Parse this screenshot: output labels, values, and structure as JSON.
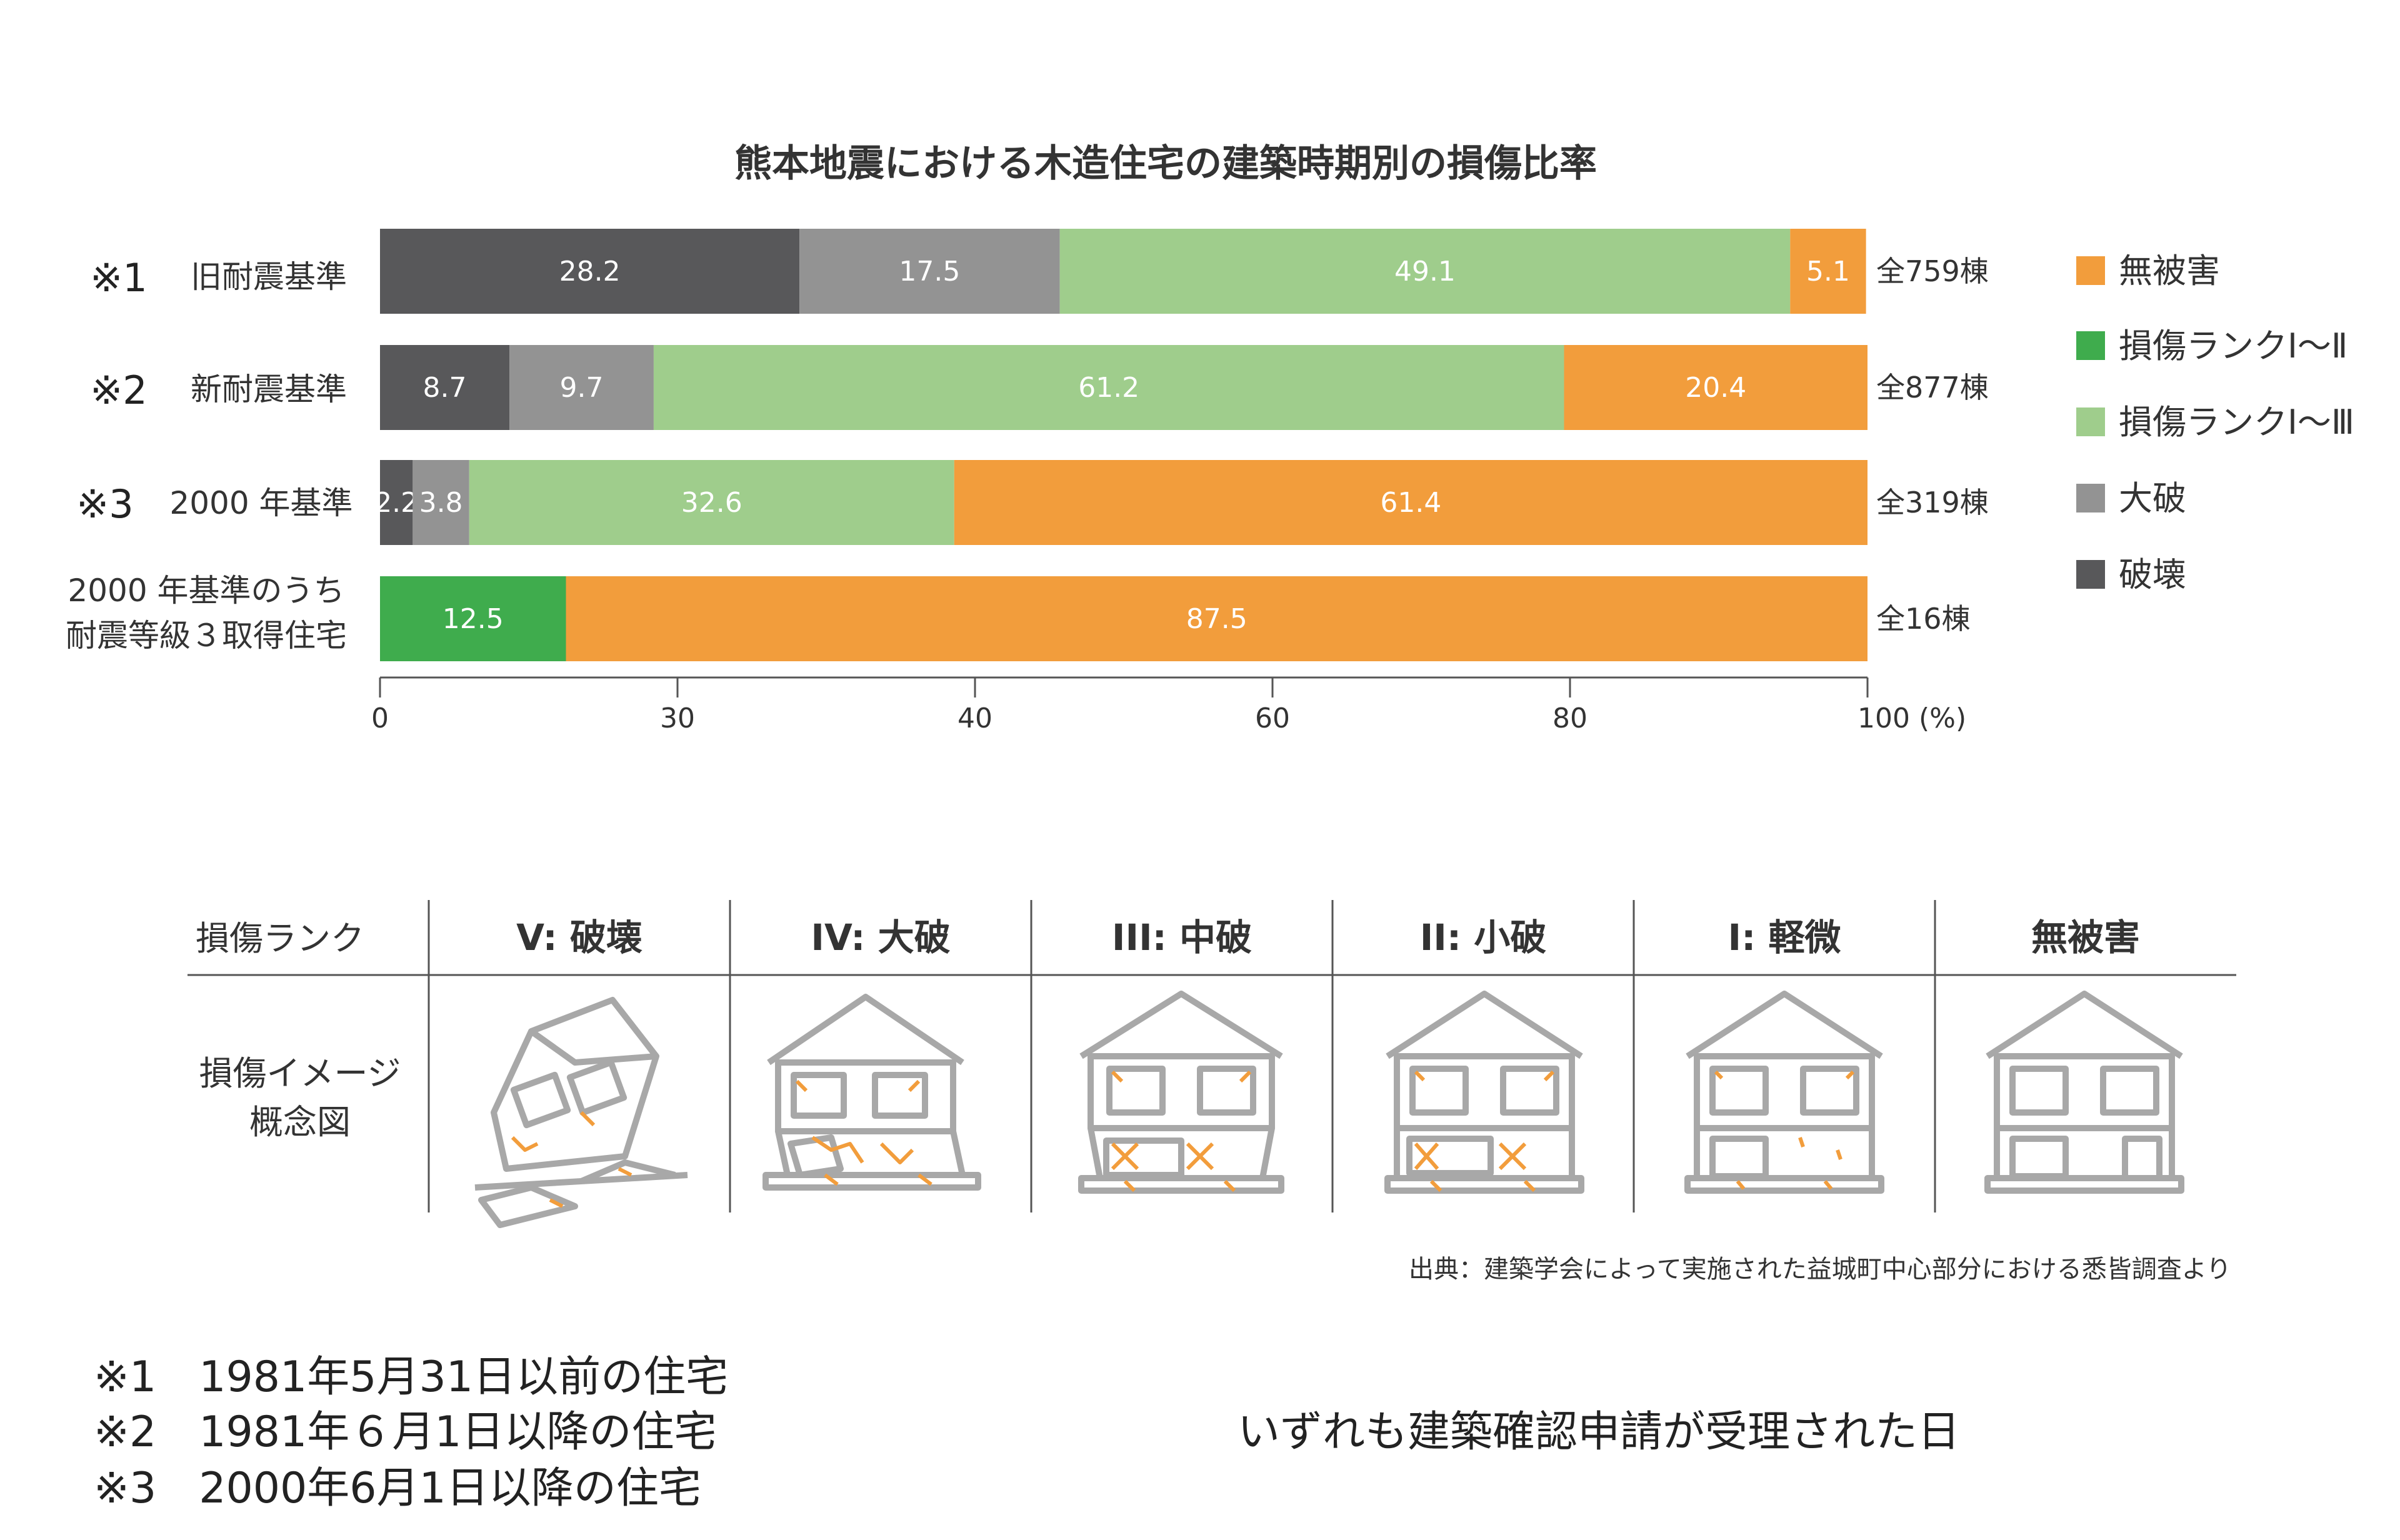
{
  "chart_data": {
    "type": "bar",
    "stacked": true,
    "orientation": "horizontal",
    "title": "熊本地震における木造住宅の建築時期別の損傷比率",
    "categories": [
      {
        "note": "※1",
        "label": "旧耐震基準"
      },
      {
        "note": "※2",
        "label": "新耐震基準"
      },
      {
        "note": "※3",
        "label": "2000 年基準"
      },
      {
        "note": "",
        "label": "2000 年基準のうち\n耐震等級３取得住宅"
      }
    ],
    "series": [
      {
        "name": "破壊",
        "color": "#58585a",
        "values": [
          28.2,
          8.7,
          2.2,
          0
        ]
      },
      {
        "name": "大破",
        "color": "#939393",
        "values": [
          17.5,
          9.7,
          3.8,
          0
        ]
      },
      {
        "name": "損傷ランクⅠ〜Ⅲ",
        "color": "#9fcd8c",
        "values": [
          49.1,
          61.2,
          32.6,
          0
        ]
      },
      {
        "name": "損傷ランクⅠ〜Ⅱ",
        "color": "#3fac4d",
        "values": [
          0,
          0,
          0,
          12.5
        ]
      },
      {
        "name": "無被害",
        "color": "#f29d3c",
        "values": [
          5.1,
          20.4,
          61.4,
          87.5
        ]
      }
    ],
    "totals": [
      "全759棟",
      "全877棟",
      "全319棟",
      "全16棟"
    ],
    "x_ticks": [
      "0",
      "30",
      "40",
      "60",
      "80",
      "100 (%)"
    ],
    "xlim": [
      0,
      100
    ],
    "legend": {
      "placement": "right",
      "entries": [
        {
          "label": "無被害",
          "color": "#f29d3c"
        },
        {
          "label": "損傷ランクⅠ〜Ⅱ",
          "color": "#3fac4d"
        },
        {
          "label": "損傷ランクⅠ〜Ⅲ",
          "color": "#9fcd8c"
        },
        {
          "label": "大破",
          "color": "#939393"
        },
        {
          "label": "破壊",
          "color": "#58585a"
        }
      ]
    }
  },
  "rank_table": {
    "header_label": "損傷ランク",
    "ranks": [
      "V: 破壊",
      "IV: 大破",
      "III: 中破",
      "II: 小破",
      "I: 軽微",
      "無被害"
    ],
    "row_label": [
      "損傷イメージ",
      "概念図"
    ],
    "icons": [
      "house-collapsed-icon",
      "house-heavy-damage-icon",
      "house-moderate-damage-icon",
      "house-minor-damage-icon",
      "house-slight-damage-icon",
      "house-no-damage-icon"
    ]
  },
  "source": "出典：建築学会によって実施された益城町中心部分における悉皆調査より",
  "footnotes": [
    "※1　1981年5月31日以前の住宅",
    "※2　1981年６月1日以降の住宅",
    "※3　2000年6月1日以降の住宅"
  ],
  "footnote_right": "いずれも建築確認申請が受理された日",
  "colors": {
    "damage_crack": "#f29d3c",
    "house_line": "#a8a8a8"
  }
}
